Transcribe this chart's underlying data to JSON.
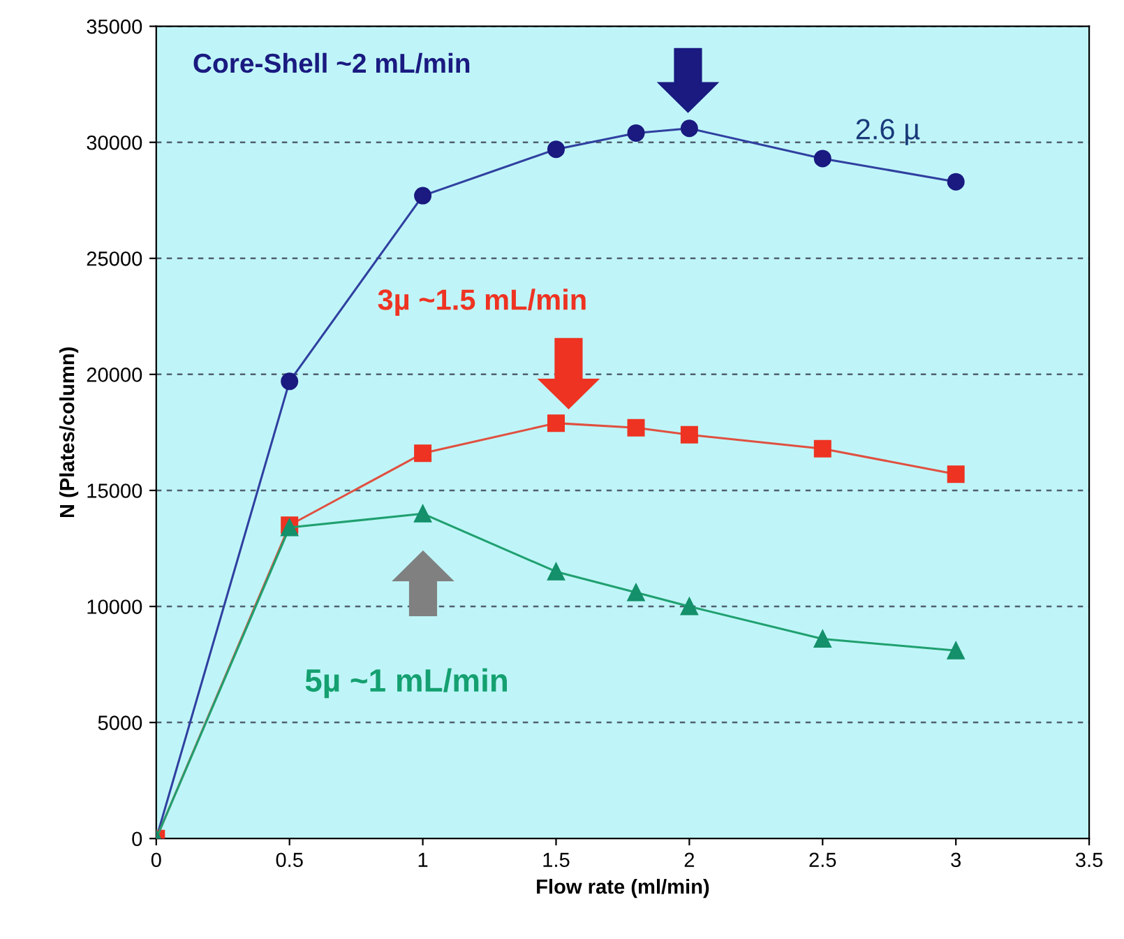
{
  "chart_data": {
    "type": "line",
    "xlabel": "Flow rate (ml/min)",
    "ylabel": "N (Plates/column)",
    "x": [
      0,
      0.5,
      1,
      1.5,
      1.8,
      2,
      2.5,
      3
    ],
    "series": [
      {
        "color": "#1a1a80",
        "marker": "circle",
        "values": [
          0,
          19700,
          27700,
          29700,
          30400,
          30600,
          29300,
          28300
        ]
      },
      {
        "color": "#ee3322",
        "marker": "square",
        "values": [
          0,
          13500,
          16600,
          17900,
          17700,
          17400,
          16800,
          15700
        ]
      },
      {
        "color": "#14906a",
        "marker": "triangle",
        "values": [
          0,
          13400,
          14000,
          11500,
          10600,
          10000,
          8600,
          8100
        ]
      }
    ],
    "annotations": [
      "Core-Shell ~2 mL/min",
      "3µ ~1.5 mL/min",
      "5µ ~1 mL/min",
      "2.6 µ"
    ],
    "xlim": [
      0,
      3.5
    ],
    "xticks": [
      0,
      0.5,
      1,
      1.5,
      2,
      2.5,
      3,
      3.5
    ],
    "ylim": [
      0,
      35000
    ],
    "yticks": [
      0,
      5000,
      10000,
      15000,
      20000,
      25000,
      30000,
      35000
    ],
    "grid": "y",
    "line_style": "solid"
  }
}
